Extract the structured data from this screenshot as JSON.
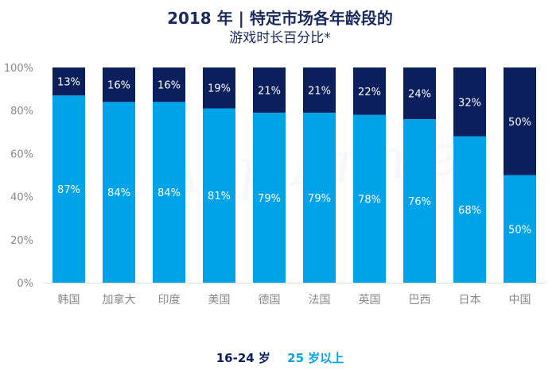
{
  "title": {
    "line1": "2018 年 | 特定市场各年龄段的",
    "line2": "游戏时长百分比*"
  },
  "watermark": "App Annie",
  "colors": {
    "young": "#00a2e8",
    "old": "#0a1f5c",
    "axis": "#888888",
    "grid": "#dddddd"
  },
  "legend": [
    {
      "label": "16-24 岁",
      "color": "#0a1f5c"
    },
    {
      "label": "25 岁以上",
      "color": "#00a2e8"
    }
  ],
  "chart_data": {
    "type": "bar",
    "stacked": true,
    "title": "2018 年 | 特定市场各年龄段的游戏时长百分比*",
    "categories": [
      "韩国",
      "加拿大",
      "印度",
      "美国",
      "德国",
      "法国",
      "英国",
      "巴西",
      "日本",
      "中国"
    ],
    "series": [
      {
        "name": "25 岁以上",
        "values": [
          87,
          84,
          84,
          81,
          79,
          79,
          78,
          76,
          68,
          50
        ],
        "labels": [
          "87%",
          "84%",
          "84%",
          "81%",
          "79%",
          "79%",
          "78%",
          "76%",
          "68%",
          "50%"
        ]
      },
      {
        "name": "16-24 岁",
        "values": [
          13,
          16,
          16,
          19,
          21,
          21,
          22,
          24,
          32,
          50
        ],
        "labels": [
          "13%",
          "16%",
          "16%",
          "19%",
          "21%",
          "21%",
          "22%",
          "24%",
          "32%",
          "50%"
        ]
      }
    ],
    "ylim": [
      0,
      100
    ],
    "yticks": [
      "0%",
      "20%",
      "40%",
      "60%",
      "80%",
      "100%"
    ],
    "xlabel": "",
    "ylabel": ""
  }
}
